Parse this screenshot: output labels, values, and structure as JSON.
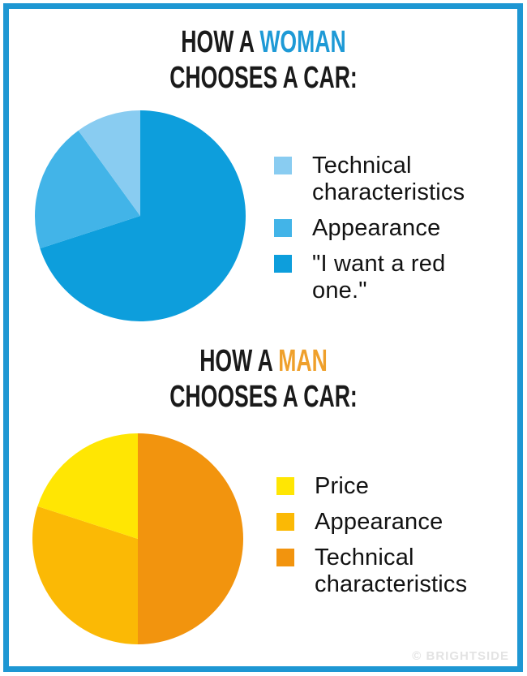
{
  "frame_color": "#1E97D3",
  "watermark": {
    "text": "© BRIGHTSIDE",
    "color": "#E3E3E3"
  },
  "sections": [
    {
      "title": {
        "prefix": "HOW A ",
        "highlight": "WOMAN",
        "highlight_color": "#1E9AD6",
        "line2": "CHOOSES A CAR:"
      },
      "legend": [
        {
          "label_lines": [
            "Technical",
            "characteristics"
          ],
          "color": "#89CCF1"
        },
        {
          "label_lines": [
            "Appearance"
          ],
          "color": "#42B4E8"
        },
        {
          "label_lines": [
            "\"I want a red one.\""
          ],
          "color": "#0D9EDC"
        }
      ]
    },
    {
      "title": {
        "prefix": "HOW A ",
        "highlight": "MAN",
        "highlight_color": "#EFA02B",
        "line2": "CHOOSES A CAR:"
      },
      "legend": [
        {
          "label_lines": [
            "Price"
          ],
          "color": "#FFE603"
        },
        {
          "label_lines": [
            "Appearance"
          ],
          "color": "#FBB905"
        },
        {
          "label_lines": [
            "Technical",
            "characteristics"
          ],
          "color": "#F2940E"
        }
      ]
    }
  ],
  "chart_data": [
    {
      "type": "pie",
      "title": "HOW A WOMAN CHOOSES A CAR:",
      "labels": [
        "Technical characteristics",
        "Appearance",
        "\"I want a red one.\""
      ],
      "values_percent": [
        10,
        20,
        70
      ],
      "colors": [
        "#89CCF1",
        "#42B4E8",
        "#0D9EDC"
      ],
      "start_angle": "12 o'clock",
      "direction": "clockwise, largest slice drawn first from top",
      "legend_position": "right",
      "data_labels": false
    },
    {
      "type": "pie",
      "title": "HOW A MAN CHOOSES A CAR:",
      "labels": [
        "Price",
        "Appearance",
        "Technical characteristics"
      ],
      "values_percent": [
        20,
        30,
        50
      ],
      "colors": [
        "#FFE603",
        "#FBB905",
        "#F2940E"
      ],
      "start_angle": "12 o'clock",
      "direction": "clockwise, largest slice drawn first from top",
      "legend_position": "right",
      "data_labels": false
    }
  ]
}
